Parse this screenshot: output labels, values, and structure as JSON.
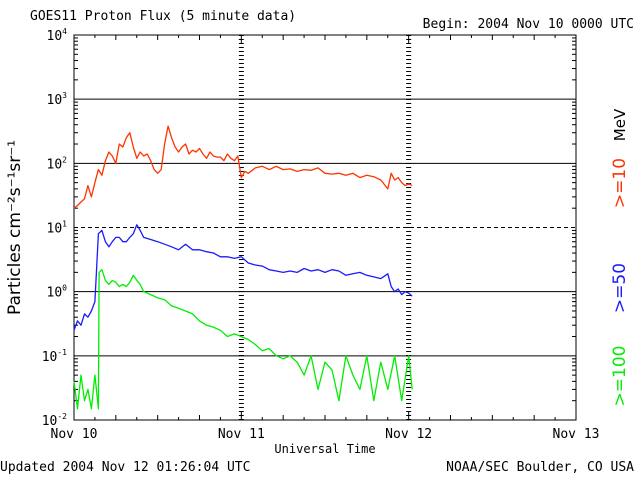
{
  "header": {
    "title": "GOES11 Proton Flux (5 minute data)",
    "begin": "Begin: 2004 Nov 10 0000 UTC"
  },
  "footer": {
    "updated": "Updated 2004 Nov 12 01:26:04 UTC",
    "credit": "NOAA/SEC Boulder, CO USA"
  },
  "chart_data": {
    "type": "line",
    "title": "GOES11 Proton Flux (5 minute data)",
    "xlabel": "Universal Time",
    "ylabel": "Particles cm⁻²s⁻¹sr⁻¹",
    "x_unit": "hours since 2004 Nov 10 0000 UTC",
    "xlim": [
      0,
      72
    ],
    "x_ticks": [
      {
        "value": 0,
        "label": "Nov 10"
      },
      {
        "value": 24,
        "label": "Nov 11"
      },
      {
        "value": 48,
        "label": "Nov 12"
      },
      {
        "value": 72,
        "label": "Nov 13"
      }
    ],
    "y_scale": "log",
    "ylim": [
      0.01,
      10000
    ],
    "y_ticks": [
      {
        "value": 0.01,
        "base": "10",
        "exp": "-2"
      },
      {
        "value": 0.1,
        "base": "10",
        "exp": "-1"
      },
      {
        "value": 1,
        "base": "10",
        "exp": "0"
      },
      {
        "value": 10,
        "base": "10",
        "exp": "1"
      },
      {
        "value": 100,
        "base": "10",
        "exp": "2"
      },
      {
        "value": 1000,
        "base": "10",
        "exp": "3"
      },
      {
        "value": 10000,
        "base": "10",
        "exp": "4"
      }
    ],
    "h_lines": [
      {
        "value": 0.1,
        "style": "solid"
      },
      {
        "value": 1,
        "style": "solid"
      },
      {
        "value": 10,
        "style": "dashed"
      },
      {
        "value": 100,
        "style": "solid"
      },
      {
        "value": 1000,
        "style": "solid"
      }
    ],
    "day_markers": [
      24,
      48
    ],
    "grid": true,
    "legend_position": "right, vertical",
    "legend_unit": "MeV",
    "series": [
      {
        "name": ">=10",
        "color": "#ff3300",
        "x": [
          0,
          0.5,
          1,
          1.5,
          2,
          2.5,
          3,
          3.5,
          4,
          4.5,
          5,
          5.5,
          6,
          6.5,
          7,
          7.5,
          8,
          8.5,
          9,
          9.5,
          10,
          10.5,
          11,
          11.5,
          12,
          12.5,
          13,
          13.5,
          14,
          14.5,
          15,
          15.5,
          16,
          16.5,
          17,
          17.5,
          18,
          18.5,
          19,
          19.5,
          20,
          20.5,
          21,
          21.5,
          22,
          22.5,
          23,
          23.5,
          24,
          24.5,
          25,
          26,
          27,
          28,
          29,
          30,
          31,
          32,
          33,
          34,
          35,
          36,
          37,
          38,
          39,
          40,
          41,
          42,
          43,
          44,
          45,
          45.5,
          46,
          46.5,
          47,
          47.5,
          48,
          48.5
        ],
        "values": [
          20,
          22,
          25,
          28,
          45,
          30,
          50,
          80,
          65,
          110,
          150,
          130,
          100,
          200,
          180,
          250,
          300,
          180,
          120,
          150,
          130,
          140,
          110,
          80,
          70,
          80,
          200,
          380,
          250,
          180,
          150,
          180,
          200,
          140,
          160,
          150,
          170,
          140,
          120,
          150,
          130,
          125,
          125,
          110,
          140,
          120,
          110,
          130,
          60,
          75,
          70,
          85,
          90,
          80,
          90,
          80,
          82,
          75,
          80,
          78,
          85,
          70,
          68,
          70,
          65,
          70,
          60,
          65,
          62,
          55,
          40,
          70,
          55,
          60,
          50,
          45,
          48,
          45
        ]
      },
      {
        "name": ">=50",
        "color": "#1a1aff",
        "x": [
          0,
          0.5,
          1,
          1.5,
          2,
          2.5,
          3,
          3.5,
          4,
          4.5,
          5,
          5.5,
          6,
          6.5,
          7,
          7.5,
          8,
          8.5,
          9,
          9.5,
          10,
          11,
          12,
          13,
          14,
          15,
          16,
          17,
          18,
          19,
          20,
          21,
          22,
          23,
          24,
          25,
          26,
          27,
          28,
          29,
          30,
          31,
          32,
          33,
          34,
          35,
          36,
          37,
          38,
          39,
          40,
          41,
          42,
          43,
          44,
          45,
          45.5,
          46,
          46.5,
          47,
          47.5,
          48,
          48.5
        ],
        "values": [
          0.25,
          0.35,
          0.3,
          0.45,
          0.4,
          0.5,
          0.7,
          8,
          9,
          6,
          5,
          6,
          7,
          7,
          6,
          6,
          7,
          8,
          11,
          9,
          7,
          6.5,
          6,
          5.5,
          5,
          4.5,
          5.5,
          4.5,
          4.5,
          4.2,
          4,
          3.5,
          3.5,
          3.3,
          3.5,
          2.8,
          2.6,
          2.5,
          2.2,
          2.1,
          2,
          2.1,
          2,
          2.3,
          2.1,
          2.2,
          2,
          2.2,
          2.1,
          1.8,
          1.9,
          2,
          1.8,
          1.7,
          1.6,
          1.9,
          1.2,
          1.0,
          1.1,
          0.9,
          1.0,
          0.95,
          0.85
        ]
      },
      {
        "name": ">=100",
        "color": "#00ee00",
        "x": [
          0,
          0.5,
          1,
          1.5,
          2,
          2.5,
          3,
          3.5,
          3.6,
          4,
          4.5,
          5,
          5.5,
          6,
          6.5,
          7,
          7.5,
          8,
          8.5,
          9,
          9.5,
          10,
          11,
          12,
          13,
          14,
          15,
          16,
          17,
          18,
          19,
          20,
          21,
          22,
          23,
          24,
          25,
          26,
          27,
          28,
          29,
          30,
          31,
          32,
          33,
          34,
          35,
          36,
          37,
          38,
          39,
          40,
          41,
          42,
          43,
          44,
          45,
          46,
          47,
          48,
          48.5
        ],
        "values": [
          0.04,
          0.015,
          0.05,
          0.02,
          0.03,
          0.015,
          0.05,
          0.015,
          2,
          2.2,
          1.5,
          1.3,
          1.5,
          1.4,
          1.2,
          1.3,
          1.2,
          1.4,
          1.8,
          1.5,
          1.3,
          1.0,
          0.9,
          0.8,
          0.75,
          0.6,
          0.55,
          0.5,
          0.45,
          0.35,
          0.3,
          0.28,
          0.25,
          0.2,
          0.22,
          0.2,
          0.18,
          0.15,
          0.12,
          0.13,
          0.1,
          0.09,
          0.1,
          0.08,
          0.05,
          0.1,
          0.03,
          0.08,
          0.06,
          0.02,
          0.1,
          0.05,
          0.03,
          0.1,
          0.02,
          0.08,
          0.03,
          0.1,
          0.02,
          0.1,
          0.03
        ]
      }
    ]
  }
}
